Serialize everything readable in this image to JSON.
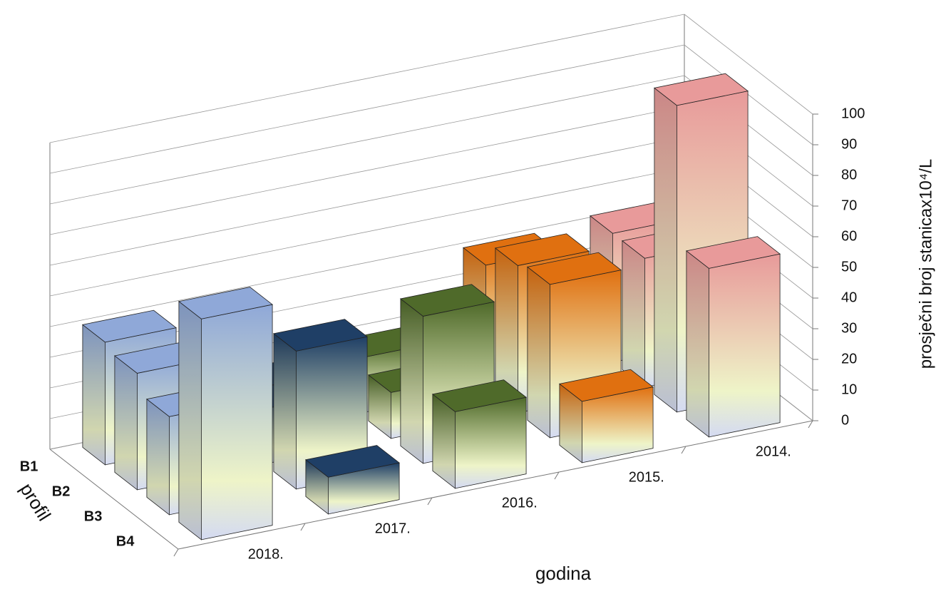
{
  "chart_data": {
    "type": "bar3d",
    "categories": [
      "2018.",
      "2017.",
      "2016.",
      "2015.",
      "2014."
    ],
    "colors": [
      "#8fa8d8",
      "#1f3f66",
      "#4f6a2a",
      "#e07010",
      "#e89a9a"
    ],
    "series": [
      {
        "name": "B1",
        "values": [
          40,
          15,
          18,
          40,
          42
        ]
      },
      {
        "name": "B2",
        "values": [
          38,
          18,
          15,
          48,
          42
        ]
      },
      {
        "name": "B3",
        "values": [
          32,
          45,
          48,
          50,
          100
        ]
      },
      {
        "name": "B4",
        "values": [
          72,
          12,
          25,
          20,
          55
        ]
      }
    ],
    "ylim": [
      0,
      100
    ],
    "yticks": [
      0,
      10,
      20,
      30,
      40,
      50,
      60,
      70,
      80,
      90,
      100
    ],
    "grid": true,
    "y_label": "prosječni broj stanicax10⁴/L",
    "x_label": "godina",
    "z_label": "profil"
  }
}
